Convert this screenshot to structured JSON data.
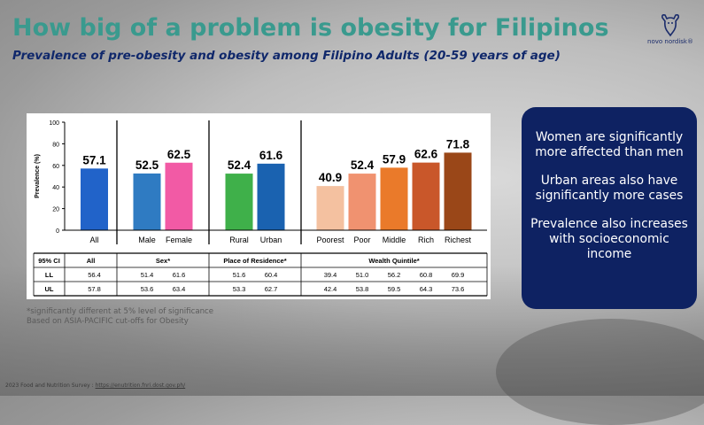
{
  "title": "How big of a problem is obesity for Filipinos",
  "subtitle": "Prevalence of pre-obesity and obesity among Filipino Adults (20-59 years of age)",
  "logo": {
    "text": "novo nordisk®",
    "icon": "apis-bull-logo"
  },
  "info_box": {
    "points": [
      "Women are significantly more affected than men",
      "Urban areas also have significantly more cases",
      "Prevalence also increases with socioeconomic income"
    ]
  },
  "footnotes": [
    "*significantly different at 5% level of significance",
    "Based on ASIA-PACIFIC cut-offs for Obesity"
  ],
  "source": {
    "text": "2023 Food and Nutrition Survey : ",
    "link": "https://enutrition.fnri.dost.gov.ph/"
  },
  "colors": {
    "title": "#3a9a8e",
    "subtitle": "#10286b",
    "info_box": "#0e2262",
    "All": "#2163c9",
    "Male": "#2f7bc2",
    "Female": "#f25aa5",
    "Rural": "#3fb04a",
    "Urban": "#1a62b0",
    "Poorest": "#f4c1a0",
    "Poor": "#f09270",
    "Middle": "#ea7a2a",
    "Rich": "#c9572a",
    "Richest": "#9a4718"
  },
  "chart_data": {
    "type": "bar",
    "ylabel": "Prevalence (%)",
    "ylim": [
      0,
      100
    ],
    "yticks": [
      0,
      20,
      40,
      60,
      80,
      100
    ],
    "grid": false,
    "groups": [
      {
        "name": "All",
        "categories": [
          "All"
        ],
        "values": [
          57.1
        ],
        "labels": [
          "57.1"
        ]
      },
      {
        "name": "Sex*",
        "categories": [
          "Male",
          "Female"
        ],
        "values": [
          52.5,
          62.5
        ],
        "labels": [
          "52.5",
          "62.5"
        ]
      },
      {
        "name": "Place of Residence*",
        "categories": [
          "Rural",
          "Urban"
        ],
        "values": [
          52.4,
          61.6
        ],
        "labels": [
          "52.4",
          "61.6"
        ]
      },
      {
        "name": "Wealth Quintile*",
        "categories": [
          "Poorest",
          "Poor",
          "Middle",
          "Rich",
          "Richest"
        ],
        "values": [
          40.9,
          52.4,
          57.9,
          62.6,
          71.8
        ],
        "labels": [
          "40.9",
          "52.4",
          "57.9",
          "62.6",
          "71.8"
        ]
      }
    ],
    "table": {
      "header": "95% CI",
      "group_headers": [
        "All",
        "Sex*",
        "Place of Residence*",
        "Wealth Quintile*"
      ],
      "rows": [
        {
          "label": "LL",
          "values": [
            "56.4",
            "51.4",
            "61.6",
            "51.6",
            "60.4",
            "39.4",
            "51.0",
            "56.2",
            "60.8",
            "69.9"
          ]
        },
        {
          "label": "UL",
          "values": [
            "57.8",
            "53.6",
            "63.4",
            "53.3",
            "62.7",
            "42.4",
            "53.8",
            "59.5",
            "64.3",
            "73.6"
          ]
        }
      ]
    }
  }
}
